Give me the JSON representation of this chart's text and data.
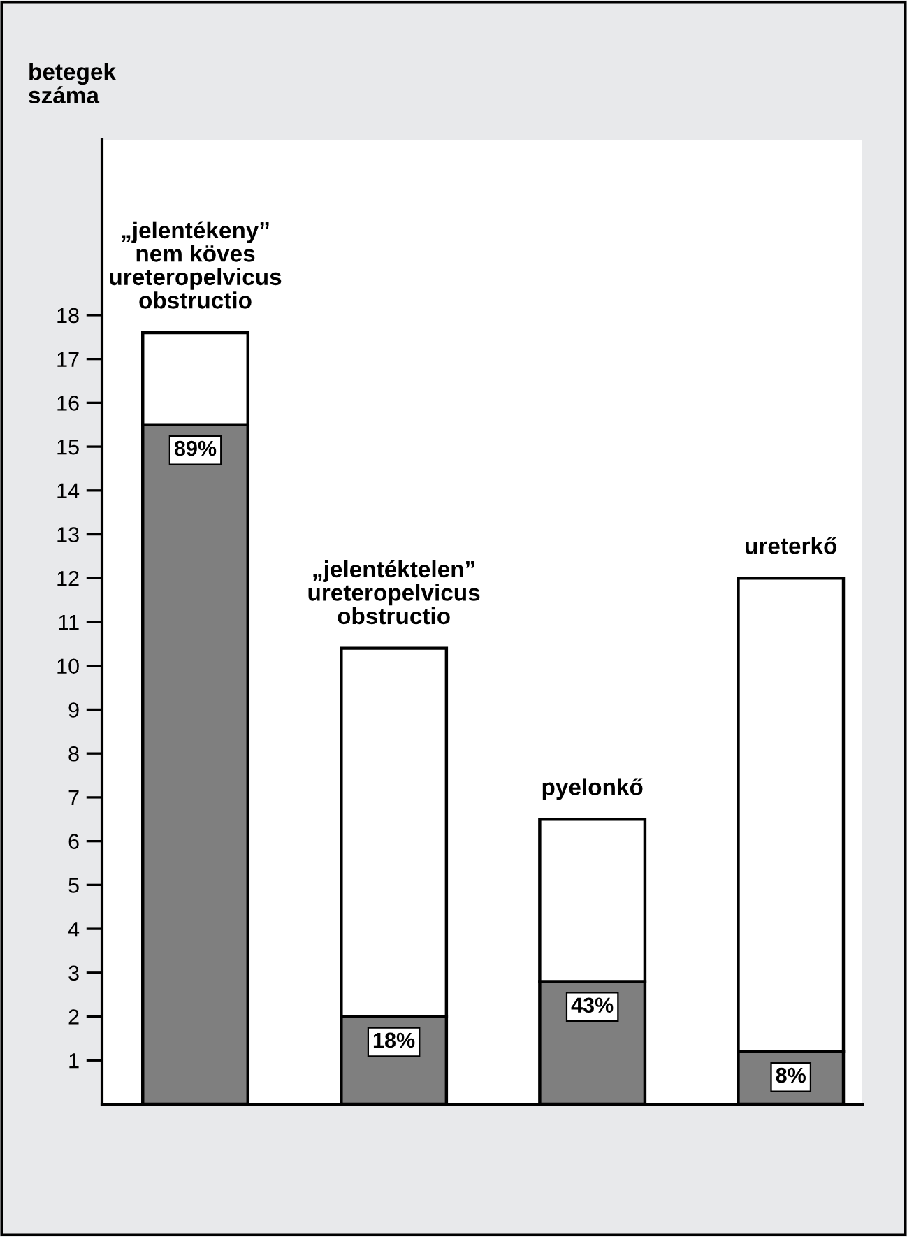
{
  "chart_data": {
    "type": "bar",
    "stacked": true,
    "ylabel": "betegek\nszáma",
    "categories": [
      "„jelentékeny”\nnem köves\nureteropelvicus\nobstructio",
      "„jelentéktelen”\nureteropelvicus\nobstructio",
      "pyelonkő",
      "ureterkő"
    ],
    "series": [
      {
        "color": "#7f7f7f",
        "values": [
          15.5,
          2.0,
          2.8,
          1.2
        ]
      },
      {
        "color": "#ffffff",
        "values": [
          2.1,
          8.4,
          3.7,
          10.8
        ]
      }
    ],
    "ylim": [
      0,
      22
    ],
    "yticks": [
      1,
      2,
      3,
      4,
      5,
      6,
      7,
      8,
      9,
      10,
      11,
      12,
      13,
      14,
      15,
      16,
      17,
      18
    ],
    "annotations": [
      {
        "text": "89%",
        "x": "„jelentékeny”\nnem köves\nureteropelvicus\nobstructio",
        "y": 15.5
      },
      {
        "text": "18%",
        "x": "„jelentéktelen”\nureteropelvicus\nobstructio",
        "y": 2.0
      },
      {
        "text": "43%",
        "x": "pyelonkő",
        "y": 2.8
      },
      {
        "text": "8%",
        "x": "ureterkő",
        "y": 1.2
      }
    ],
    "grid": false,
    "legend": false
  }
}
